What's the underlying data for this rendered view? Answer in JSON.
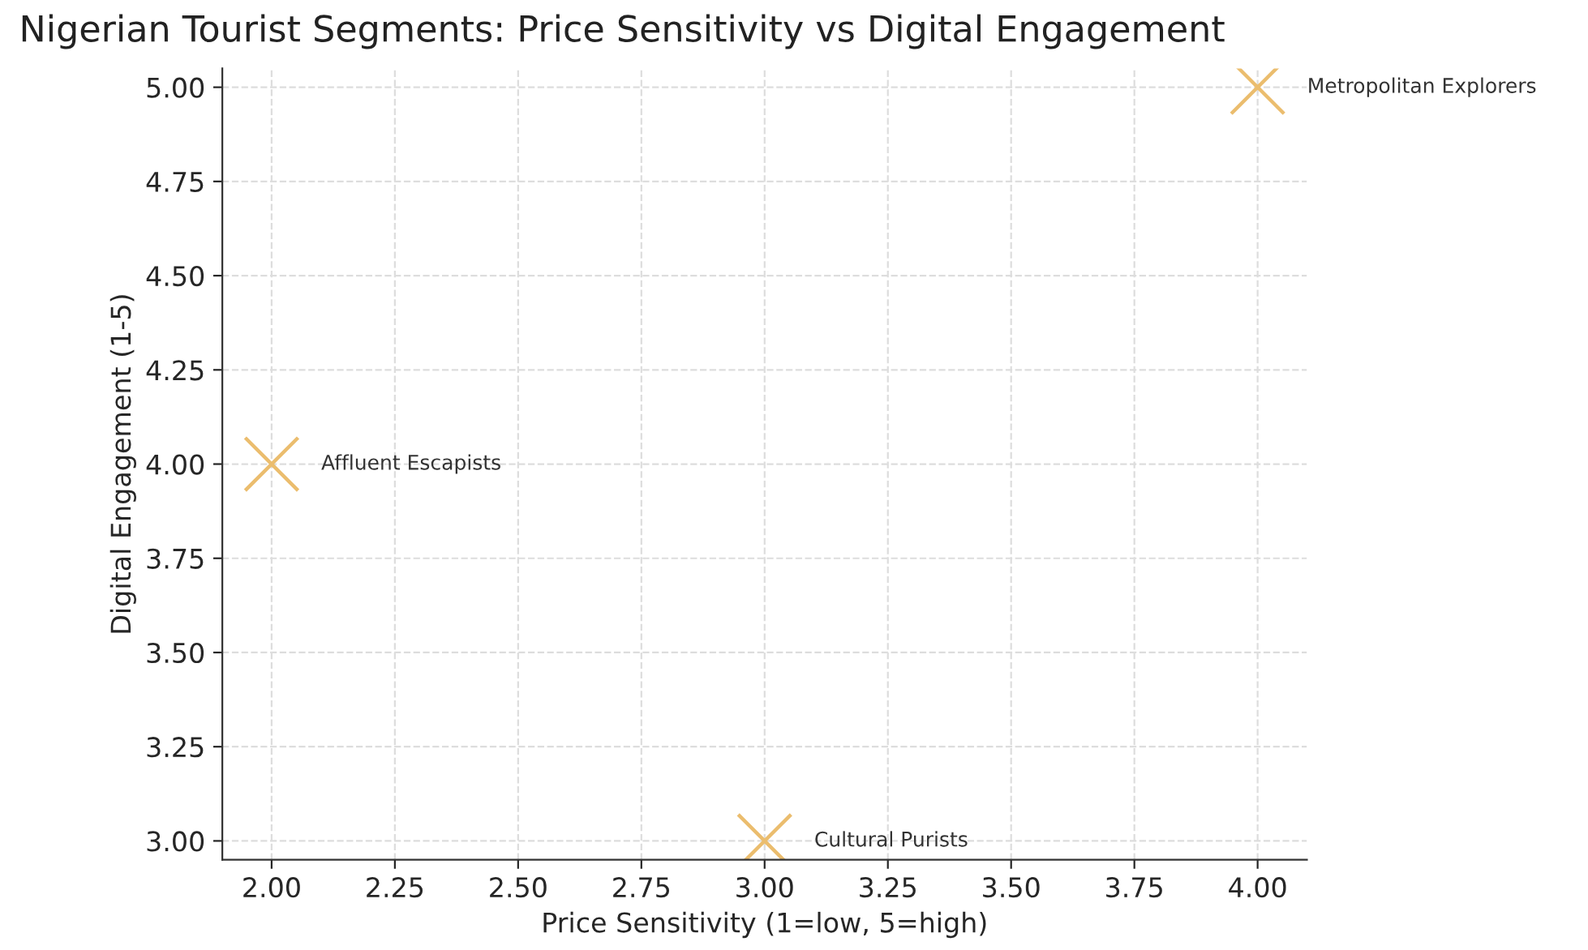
{
  "chart_data": {
    "type": "scatter",
    "title": "Nigerian Tourist Segments: Price Sensitivity vs Digital Engagement",
    "xlabel": "Price Sensitivity (1=low, 5=high)",
    "ylabel": "Digital Engagement (1-5)",
    "x": [
      2,
      3,
      4
    ],
    "series": [
      {
        "color": "#ebbd6e",
        "values": [
          4,
          3,
          5
        ]
      }
    ],
    "annotations": [
      {
        "text": "Affluent Escapists",
        "x": 2,
        "y": 4
      },
      {
        "text": "Cultural Purists",
        "x": 3,
        "y": 3
      },
      {
        "text": "Metropolitan Explorers",
        "x": 4,
        "y": 5
      }
    ],
    "xlim": [
      1.9,
      4.1
    ],
    "ylim": [
      2.95,
      5.05
    ],
    "xticks": [
      {
        "value": 2,
        "label": "2.00"
      },
      {
        "value": 2.25,
        "label": "2.25"
      },
      {
        "value": 2.5,
        "label": "2.50"
      },
      {
        "value": 2.75,
        "label": "2.75"
      },
      {
        "value": 3,
        "label": "3.00"
      },
      {
        "value": 3.25,
        "label": "3.25"
      },
      {
        "value": 3.5,
        "label": "3.50"
      },
      {
        "value": 3.75,
        "label": "3.75"
      },
      {
        "value": 4,
        "label": "4.00"
      }
    ],
    "yticks": [
      {
        "value": 3,
        "label": "3.00"
      },
      {
        "value": 3.25,
        "label": "3.25"
      },
      {
        "value": 3.5,
        "label": "3.50"
      },
      {
        "value": 3.75,
        "label": "3.75"
      },
      {
        "value": 4,
        "label": "4.00"
      },
      {
        "value": 4.25,
        "label": "4.25"
      },
      {
        "value": 4.5,
        "label": "4.50"
      },
      {
        "value": 4.75,
        "label": "4.75"
      },
      {
        "value": 5,
        "label": "5.00"
      }
    ],
    "grid": true,
    "marker": "cross"
  }
}
